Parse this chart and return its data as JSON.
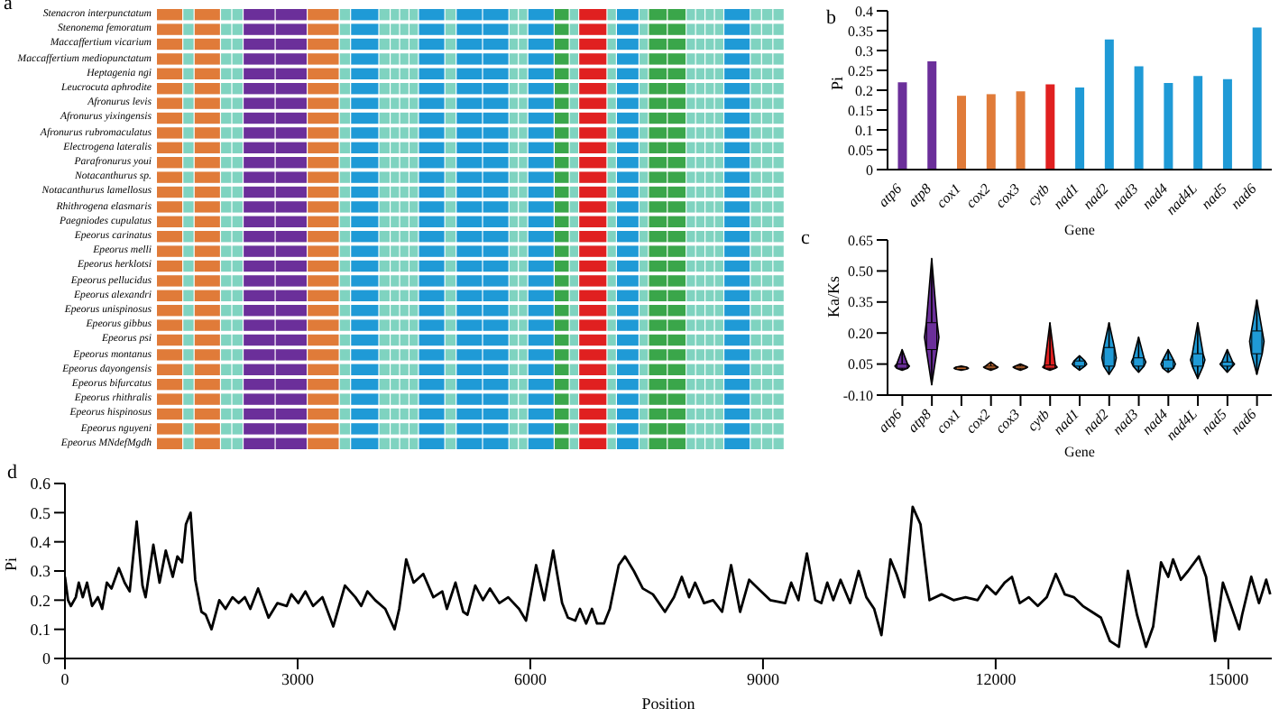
{
  "chart_data": [
    {
      "type": "other",
      "title": "a",
      "categories": [
        "Stenacron interpunctatum",
        "Stenonema femoratum",
        "Maccaffertium vicarium",
        "Maccaffertium mediopunctatum",
        "Heptagenia ngi",
        "Leucrocuta aphrodite",
        "Afronurus levis",
        "Afronurus yixingensis",
        "Afronurus rubromaculatus",
        "Electrogena lateralis",
        "Parafronurus youi",
        "Notacanthurus sp.",
        "Notacanthurus lamellosus",
        "Rhithrogena elasmaris",
        "Paegniodes cupulatus",
        "Epeorus carinatus",
        "Epeorus melli",
        "Epeorus herklotsi",
        "Epeorus pellucidus",
        "Epeorus alexandri",
        "Epeorus unispinosus",
        "Epeorus gibbus",
        "Epeorus psi",
        "Epeorus montanus",
        "Epeorus dayongensis",
        "Epeorus bifurcatus",
        "Epeorus rhithralis",
        "Epeorus hispinosus",
        "Epeorus nguyeni",
        "Epeorus MNdefMgdh"
      ]
    },
    {
      "type": "bar",
      "title": "b",
      "xlabel": "Gene",
      "ylabel": "Pi",
      "categories": [
        "atp6",
        "atp8",
        "cox1",
        "cox2",
        "cox3",
        "cytb",
        "nad1",
        "nad2",
        "nad3",
        "nad4",
        "nad4L",
        "nad5",
        "nad6"
      ],
      "values": [
        0.22,
        0.273,
        0.186,
        0.19,
        0.197,
        0.215,
        0.207,
        0.328,
        0.26,
        0.218,
        0.236,
        0.228,
        0.358
      ],
      "colors": [
        "#6b2f9a",
        "#6b2f9a",
        "#e07b39",
        "#e07b39",
        "#e07b39",
        "#e02020",
        "#1f9ad6",
        "#1f9ad6",
        "#1f9ad6",
        "#1f9ad6",
        "#1f9ad6",
        "#1f9ad6",
        "#1f9ad6"
      ],
      "ylim": [
        0,
        0.4
      ],
      "yticks": [
        0,
        0.05,
        0.1,
        0.15,
        0.2,
        0.25,
        0.3,
        0.35,
        0.4
      ]
    },
    {
      "type": "box",
      "title": "c",
      "xlabel": "Gene",
      "ylabel": "Ka/Ks",
      "categories": [
        "atp6",
        "atp8",
        "cox1",
        "cox2",
        "cox3",
        "cytb",
        "nad1",
        "nad2",
        "nad3",
        "nad4",
        "nad4L",
        "nad5",
        "nad6"
      ],
      "boxes": [
        {
          "low": 0.02,
          "q1": 0.03,
          "median": 0.04,
          "q3": 0.05,
          "high": 0.12
        },
        {
          "low": -0.05,
          "q1": 0.12,
          "median": 0.18,
          "q3": 0.25,
          "high": 0.56
        },
        {
          "low": 0.02,
          "q1": 0.025,
          "median": 0.03,
          "q3": 0.035,
          "high": 0.04
        },
        {
          "low": 0.02,
          "q1": 0.03,
          "median": 0.035,
          "q3": 0.04,
          "high": 0.06
        },
        {
          "low": 0.02,
          "q1": 0.03,
          "median": 0.035,
          "q3": 0.04,
          "high": 0.05
        },
        {
          "low": 0.02,
          "q1": 0.03,
          "median": 0.035,
          "q3": 0.045,
          "high": 0.25
        },
        {
          "low": 0.02,
          "q1": 0.04,
          "median": 0.05,
          "q3": 0.065,
          "high": 0.09
        },
        {
          "low": 0.0,
          "q1": 0.04,
          "median": 0.08,
          "q3": 0.13,
          "high": 0.25
        },
        {
          "low": 0.01,
          "q1": 0.04,
          "median": 0.06,
          "q3": 0.08,
          "high": 0.18
        },
        {
          "low": 0.01,
          "q1": 0.03,
          "median": 0.05,
          "q3": 0.07,
          "high": 0.12
        },
        {
          "low": -0.02,
          "q1": 0.04,
          "median": 0.07,
          "q3": 0.1,
          "high": 0.25
        },
        {
          "low": 0.01,
          "q1": 0.04,
          "median": 0.05,
          "q3": 0.06,
          "high": 0.12
        },
        {
          "low": 0.0,
          "q1": 0.1,
          "median": 0.16,
          "q3": 0.21,
          "high": 0.36
        }
      ],
      "colors": [
        "#6b2f9a",
        "#6b2f9a",
        "#e07b39",
        "#e07b39",
        "#e07b39",
        "#e02020",
        "#1f9ad6",
        "#1f9ad6",
        "#1f9ad6",
        "#1f9ad6",
        "#1f9ad6",
        "#1f9ad6",
        "#1f9ad6"
      ],
      "ylim": [
        -0.1,
        0.65
      ],
      "yticks": [
        {
          "value": -0.1,
          "label": "-0.10"
        },
        {
          "value": 0.05,
          "label": "0.05"
        },
        {
          "value": 0.2,
          "label": "0.20"
        },
        {
          "value": 0.35,
          "label": "0.35"
        },
        {
          "value": 0.5,
          "label": "0.50"
        },
        {
          "value": 0.65,
          "label": "0.65"
        }
      ]
    },
    {
      "type": "line",
      "title": "d",
      "xlabel": "Position",
      "ylabel": "Pi",
      "xlim": [
        0,
        15560
      ],
      "xticks": [
        0,
        3000,
        6000,
        9000,
        12000,
        15000
      ],
      "ylim": [
        0,
        0.6
      ],
      "yticks": [
        0,
        0.1,
        0.2,
        0.3,
        0.4,
        0.5,
        0.6
      ],
      "x": [
        0,
        40,
        77,
        140,
        178,
        230,
        285,
        350,
        425,
        480,
        540,
        600,
        655,
        695,
        770,
        835,
        925,
        1000,
        1040,
        1140,
        1220,
        1300,
        1390,
        1450,
        1510,
        1560,
        1620,
        1680,
        1760,
        1815,
        1890,
        1990,
        2070,
        2160,
        2240,
        2320,
        2390,
        2490,
        2625,
        2740,
        2860,
        2920,
        3010,
        3100,
        3200,
        3320,
        3460,
        3610,
        3745,
        3820,
        3900,
        4000,
        4130,
        4250,
        4310,
        4400,
        4495,
        4620,
        4750,
        4865,
        4925,
        5035,
        5135,
        5190,
        5290,
        5390,
        5480,
        5600,
        5715,
        5855,
        5945,
        6075,
        6180,
        6295,
        6410,
        6485,
        6580,
        6640,
        6720,
        6795,
        6860,
        6950,
        7025,
        7140,
        7220,
        7335,
        7450,
        7581,
        7736,
        7853,
        7953,
        8047,
        8124,
        8240,
        8357,
        8473,
        8589,
        8705,
        8822,
        8938,
        9093,
        9287,
        9364,
        9457,
        9566,
        9674,
        9752,
        9829,
        9907,
        10000,
        10124,
        10233,
        10333,
        10434,
        10527,
        10643,
        10721,
        10822,
        10930,
        11031,
        11147,
        11302,
        11457,
        11612,
        11767,
        11884,
        12000,
        12116,
        12209,
        12310,
        12426,
        12543,
        12659,
        12775,
        12891,
        13008,
        13124,
        13240,
        13357,
        13473,
        13589,
        13705,
        13822,
        13938,
        14031,
        14132,
        14225,
        14287,
        14388,
        14481,
        14620,
        14713,
        14829,
        14930,
        15023,
        15140,
        15178,
        15295,
        15395,
        15488,
        15540
      ],
      "series": [
        {
          "color": "#000000",
          "values": [
            0.28,
            0.2,
            0.18,
            0.21,
            0.26,
            0.21,
            0.26,
            0.18,
            0.21,
            0.17,
            0.26,
            0.24,
            0.28,
            0.31,
            0.26,
            0.23,
            0.47,
            0.25,
            0.21,
            0.39,
            0.26,
            0.37,
            0.28,
            0.35,
            0.33,
            0.46,
            0.5,
            0.27,
            0.16,
            0.15,
            0.1,
            0.2,
            0.17,
            0.21,
            0.19,
            0.21,
            0.17,
            0.24,
            0.14,
            0.19,
            0.18,
            0.22,
            0.19,
            0.23,
            0.18,
            0.21,
            0.11,
            0.25,
            0.21,
            0.18,
            0.23,
            0.2,
            0.17,
            0.1,
            0.17,
            0.34,
            0.26,
            0.29,
            0.21,
            0.23,
            0.17,
            0.26,
            0.16,
            0.15,
            0.25,
            0.2,
            0.24,
            0.19,
            0.21,
            0.17,
            0.13,
            0.32,
            0.2,
            0.37,
            0.19,
            0.14,
            0.13,
            0.17,
            0.12,
            0.17,
            0.12,
            0.12,
            0.17,
            0.32,
            0.35,
            0.3,
            0.24,
            0.22,
            0.16,
            0.21,
            0.28,
            0.21,
            0.26,
            0.19,
            0.2,
            0.16,
            0.32,
            0.16,
            0.27,
            0.24,
            0.2,
            0.19,
            0.26,
            0.2,
            0.36,
            0.2,
            0.19,
            0.26,
            0.2,
            0.27,
            0.19,
            0.3,
            0.21,
            0.17,
            0.08,
            0.34,
            0.29,
            0.21,
            0.52,
            0.46,
            0.2,
            0.22,
            0.2,
            0.21,
            0.2,
            0.25,
            0.22,
            0.26,
            0.28,
            0.19,
            0.21,
            0.18,
            0.21,
            0.29,
            0.22,
            0.21,
            0.18,
            0.16,
            0.14,
            0.06,
            0.04,
            0.3,
            0.15,
            0.04,
            0.11,
            0.33,
            0.28,
            0.34,
            0.27,
            0.3,
            0.35,
            0.28,
            0.06,
            0.26,
            0.19,
            0.1,
            0.15,
            0.28,
            0.19,
            0.27,
            0.22
          ]
        }
      ]
    }
  ]
}
